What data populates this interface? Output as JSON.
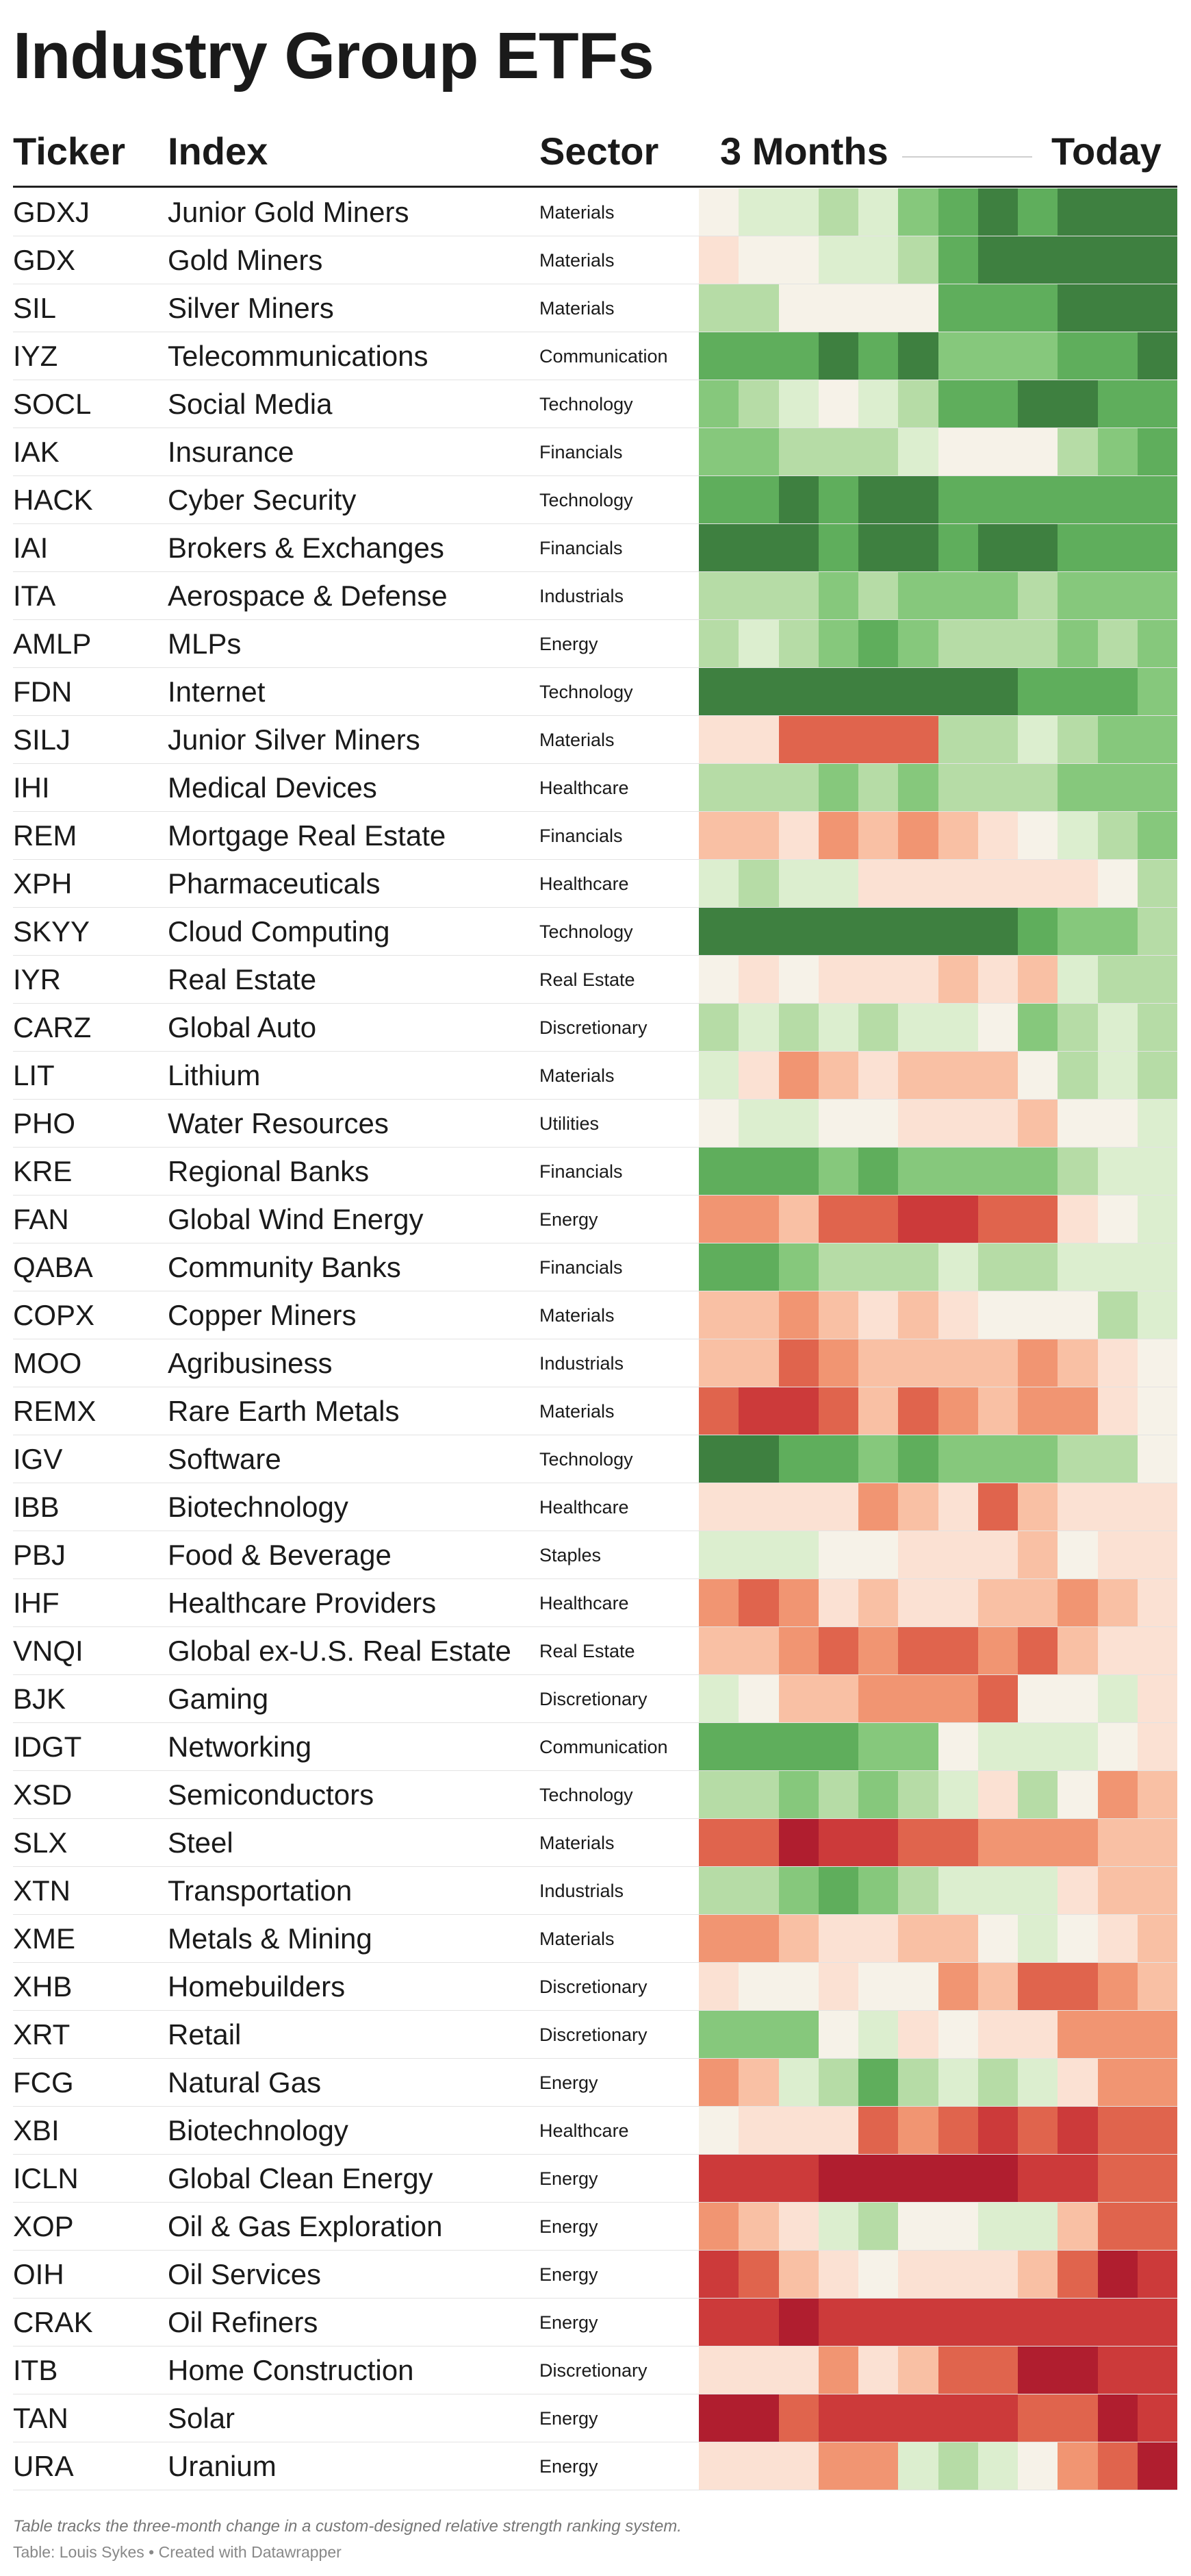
{
  "title": "Industry Group ETFs",
  "headers": {
    "ticker": "Ticker",
    "index": "Index",
    "sector": "Sector",
    "left": "3 Months",
    "right": "Today"
  },
  "notes": "Table tracks the three-month change in a custom-designed relative strength ranking system.",
  "credit": "Table: Louis Sykes • Created with Datawrapper",
  "chart_data": {
    "type": "heatmap",
    "columns": [
      "Ticker",
      "Index",
      "Sector",
      "3 Months",
      "Today"
    ],
    "scale": [
      "#b01e2f",
      "#cc3a3a",
      "#e0644d",
      "#f19572",
      "#f9c0a4",
      "#fbe1d3",
      "#f6f2e8",
      "#dceecf",
      "#b6dca6",
      "#86c87c",
      "#5fae5c",
      "#3e8040"
    ],
    "time_steps": 12,
    "rows": [
      {
        "ticker": "GDXJ",
        "index": "Junior Gold Miners",
        "sector": "Materials",
        "levels": [
          6,
          7,
          7,
          8,
          7,
          9,
          10,
          11,
          10,
          11,
          11,
          11
        ]
      },
      {
        "ticker": "GDX",
        "index": "Gold Miners",
        "sector": "Materials",
        "levels": [
          5,
          6,
          6,
          7,
          7,
          8,
          10,
          11,
          11,
          11,
          11,
          11
        ]
      },
      {
        "ticker": "SIL",
        "index": "Silver Miners",
        "sector": "Materials",
        "levels": [
          8,
          8,
          6,
          6,
          6,
          6,
          10,
          10,
          10,
          11,
          11,
          11
        ]
      },
      {
        "ticker": "IYZ",
        "index": "Telecommunications",
        "sector": "Communication",
        "levels": [
          10,
          10,
          10,
          11,
          10,
          11,
          9,
          9,
          9,
          10,
          10,
          11
        ]
      },
      {
        "ticker": "SOCL",
        "index": "Social Media",
        "sector": "Technology",
        "levels": [
          9,
          8,
          7,
          6,
          7,
          8,
          10,
          10,
          11,
          11,
          10,
          10
        ]
      },
      {
        "ticker": "IAK",
        "index": "Insurance",
        "sector": "Financials",
        "levels": [
          9,
          9,
          8,
          8,
          8,
          7,
          6,
          6,
          6,
          8,
          9,
          10
        ]
      },
      {
        "ticker": "HACK",
        "index": "Cyber Security",
        "sector": "Technology",
        "levels": [
          10,
          10,
          11,
          10,
          11,
          11,
          10,
          10,
          10,
          10,
          10,
          10
        ]
      },
      {
        "ticker": "IAI",
        "index": "Brokers & Exchanges",
        "sector": "Financials",
        "levels": [
          11,
          11,
          11,
          10,
          11,
          11,
          10,
          11,
          11,
          10,
          10,
          10
        ]
      },
      {
        "ticker": "ITA",
        "index": "Aerospace & Defense",
        "sector": "Industrials",
        "levels": [
          8,
          8,
          8,
          9,
          8,
          9,
          9,
          9,
          8,
          9,
          9,
          9
        ]
      },
      {
        "ticker": "AMLP",
        "index": "MLPs",
        "sector": "Energy",
        "levels": [
          8,
          7,
          8,
          9,
          10,
          9,
          8,
          8,
          8,
          9,
          8,
          9
        ]
      },
      {
        "ticker": "FDN",
        "index": "Internet",
        "sector": "Technology",
        "levels": [
          11,
          11,
          11,
          11,
          11,
          11,
          11,
          11,
          10,
          10,
          10,
          9
        ]
      },
      {
        "ticker": "SILJ",
        "index": "Junior Silver Miners",
        "sector": "Materials",
        "levels": [
          5,
          5,
          2,
          2,
          2,
          2,
          8,
          8,
          7,
          8,
          9,
          9
        ]
      },
      {
        "ticker": "IHI",
        "index": "Medical Devices",
        "sector": "Healthcare",
        "levels": [
          8,
          8,
          8,
          9,
          8,
          9,
          8,
          8,
          8,
          9,
          9,
          9
        ]
      },
      {
        "ticker": "REM",
        "index": "Mortgage Real Estate",
        "sector": "Financials",
        "levels": [
          4,
          4,
          5,
          3,
          4,
          3,
          4,
          5,
          6,
          7,
          8,
          9
        ]
      },
      {
        "ticker": "XPH",
        "index": "Pharmaceuticals",
        "sector": "Healthcare",
        "levels": [
          7,
          8,
          7,
          7,
          5,
          5,
          5,
          5,
          5,
          5,
          6,
          8
        ]
      },
      {
        "ticker": "SKYY",
        "index": "Cloud Computing",
        "sector": "Technology",
        "levels": [
          11,
          11,
          11,
          11,
          11,
          11,
          11,
          11,
          10,
          9,
          9,
          8
        ]
      },
      {
        "ticker": "IYR",
        "index": "Real Estate",
        "sector": "Real Estate",
        "levels": [
          6,
          5,
          6,
          5,
          5,
          5,
          4,
          5,
          4,
          7,
          8,
          8
        ]
      },
      {
        "ticker": "CARZ",
        "index": "Global Auto",
        "sector": "Discretionary",
        "levels": [
          8,
          7,
          8,
          7,
          8,
          7,
          7,
          6,
          9,
          8,
          7,
          8
        ]
      },
      {
        "ticker": "LIT",
        "index": "Lithium",
        "sector": "Materials",
        "levels": [
          7,
          5,
          3,
          4,
          5,
          4,
          4,
          4,
          6,
          8,
          7,
          8
        ]
      },
      {
        "ticker": "PHO",
        "index": "Water Resources",
        "sector": "Utilities",
        "levels": [
          6,
          7,
          7,
          6,
          6,
          5,
          5,
          5,
          4,
          6,
          6,
          7
        ]
      },
      {
        "ticker": "KRE",
        "index": "Regional Banks",
        "sector": "Financials",
        "levels": [
          10,
          10,
          10,
          9,
          10,
          9,
          9,
          9,
          9,
          8,
          7,
          7
        ]
      },
      {
        "ticker": "FAN",
        "index": "Global Wind Energy",
        "sector": "Energy",
        "levels": [
          3,
          3,
          4,
          2,
          2,
          1,
          1,
          2,
          2,
          5,
          6,
          7
        ]
      },
      {
        "ticker": "QABA",
        "index": "Community Banks",
        "sector": "Financials",
        "levels": [
          10,
          10,
          9,
          8,
          8,
          8,
          7,
          8,
          8,
          7,
          7,
          7
        ]
      },
      {
        "ticker": "COPX",
        "index": "Copper Miners",
        "sector": "Materials",
        "levels": [
          4,
          4,
          3,
          4,
          5,
          4,
          5,
          6,
          6,
          6,
          8,
          7
        ]
      },
      {
        "ticker": "MOO",
        "index": "Agribusiness",
        "sector": "Industrials",
        "levels": [
          4,
          4,
          2,
          3,
          4,
          4,
          4,
          4,
          3,
          4,
          5,
          6
        ]
      },
      {
        "ticker": "REMX",
        "index": "Rare Earth Metals",
        "sector": "Materials",
        "levels": [
          2,
          1,
          1,
          2,
          4,
          2,
          3,
          4,
          3,
          3,
          5,
          6
        ]
      },
      {
        "ticker": "IGV",
        "index": "Software",
        "sector": "Technology",
        "levels": [
          11,
          11,
          10,
          10,
          9,
          10,
          9,
          9,
          9,
          8,
          8,
          6
        ]
      },
      {
        "ticker": "IBB",
        "index": "Biotechnology",
        "sector": "Healthcare",
        "levels": [
          5,
          5,
          5,
          5,
          3,
          4,
          5,
          2,
          4,
          5,
          5,
          5
        ]
      },
      {
        "ticker": "PBJ",
        "index": "Food & Beverage",
        "sector": "Staples",
        "levels": [
          7,
          7,
          7,
          6,
          6,
          5,
          5,
          5,
          4,
          6,
          5,
          5
        ]
      },
      {
        "ticker": "IHF",
        "index": "Healthcare Providers",
        "sector": "Healthcare",
        "levels": [
          3,
          2,
          3,
          5,
          4,
          5,
          5,
          4,
          4,
          3,
          4,
          5
        ]
      },
      {
        "ticker": "VNQI",
        "index": "Global ex-U.S. Real Estate",
        "sector": "Real Estate",
        "levels": [
          4,
          4,
          3,
          2,
          3,
          2,
          2,
          3,
          2,
          4,
          5,
          5
        ]
      },
      {
        "ticker": "BJK",
        "index": "Gaming",
        "sector": "Discretionary",
        "levels": [
          7,
          6,
          4,
          4,
          3,
          3,
          3,
          2,
          6,
          6,
          7,
          5
        ]
      },
      {
        "ticker": "IDGT",
        "index": "Networking",
        "sector": "Communication",
        "levels": [
          10,
          10,
          10,
          10,
          9,
          9,
          6,
          7,
          7,
          7,
          6,
          5
        ]
      },
      {
        "ticker": "XSD",
        "index": "Semiconductors",
        "sector": "Technology",
        "levels": [
          8,
          8,
          9,
          8,
          9,
          8,
          7,
          5,
          8,
          6,
          3,
          4
        ]
      },
      {
        "ticker": "SLX",
        "index": "Steel",
        "sector": "Materials",
        "levels": [
          2,
          2,
          0,
          1,
          1,
          2,
          2,
          3,
          3,
          3,
          4,
          4
        ]
      },
      {
        "ticker": "XTN",
        "index": "Transportation",
        "sector": "Industrials",
        "levels": [
          8,
          8,
          9,
          10,
          9,
          8,
          7,
          7,
          7,
          5,
          4,
          4
        ]
      },
      {
        "ticker": "XME",
        "index": "Metals & Mining",
        "sector": "Materials",
        "levels": [
          3,
          3,
          4,
          5,
          5,
          4,
          4,
          6,
          7,
          6,
          5,
          4
        ]
      },
      {
        "ticker": "XHB",
        "index": "Homebuilders",
        "sector": "Discretionary",
        "levels": [
          5,
          6,
          6,
          5,
          6,
          6,
          3,
          4,
          2,
          2,
          3,
          4
        ]
      },
      {
        "ticker": "XRT",
        "index": "Retail",
        "sector": "Discretionary",
        "levels": [
          9,
          9,
          9,
          6,
          7,
          5,
          6,
          5,
          5,
          3,
          3,
          3
        ]
      },
      {
        "ticker": "FCG",
        "index": "Natural Gas",
        "sector": "Energy",
        "levels": [
          3,
          4,
          7,
          8,
          10,
          8,
          7,
          8,
          7,
          5,
          3,
          3
        ]
      },
      {
        "ticker": "XBI",
        "index": "Biotechnology",
        "sector": "Healthcare",
        "levels": [
          6,
          5,
          5,
          5,
          2,
          3,
          2,
          1,
          2,
          1,
          2,
          2
        ]
      },
      {
        "ticker": "ICLN",
        "index": "Global Clean Energy",
        "sector": "Energy",
        "levels": [
          1,
          1,
          1,
          0,
          0,
          0,
          0,
          0,
          1,
          1,
          2,
          2
        ]
      },
      {
        "ticker": "XOP",
        "index": "Oil & Gas Exploration",
        "sector": "Energy",
        "levels": [
          3,
          4,
          5,
          7,
          8,
          6,
          6,
          7,
          7,
          4,
          2,
          2
        ]
      },
      {
        "ticker": "OIH",
        "index": "Oil Services",
        "sector": "Energy",
        "levels": [
          1,
          2,
          4,
          5,
          6,
          5,
          5,
          5,
          4,
          2,
          0,
          1
        ]
      },
      {
        "ticker": "CRAK",
        "index": "Oil Refiners",
        "sector": "Energy",
        "levels": [
          1,
          1,
          0,
          1,
          1,
          1,
          1,
          1,
          1,
          1,
          1,
          1
        ]
      },
      {
        "ticker": "ITB",
        "index": "Home Construction",
        "sector": "Discretionary",
        "levels": [
          5,
          5,
          5,
          3,
          5,
          4,
          2,
          2,
          0,
          0,
          1,
          1
        ]
      },
      {
        "ticker": "TAN",
        "index": "Solar",
        "sector": "Energy",
        "levels": [
          0,
          0,
          2,
          1,
          1,
          1,
          1,
          1,
          2,
          2,
          0,
          1
        ]
      },
      {
        "ticker": "URA",
        "index": "Uranium",
        "sector": "Energy",
        "levels": [
          5,
          5,
          5,
          3,
          3,
          7,
          8,
          7,
          6,
          3,
          2,
          0
        ]
      }
    ]
  }
}
